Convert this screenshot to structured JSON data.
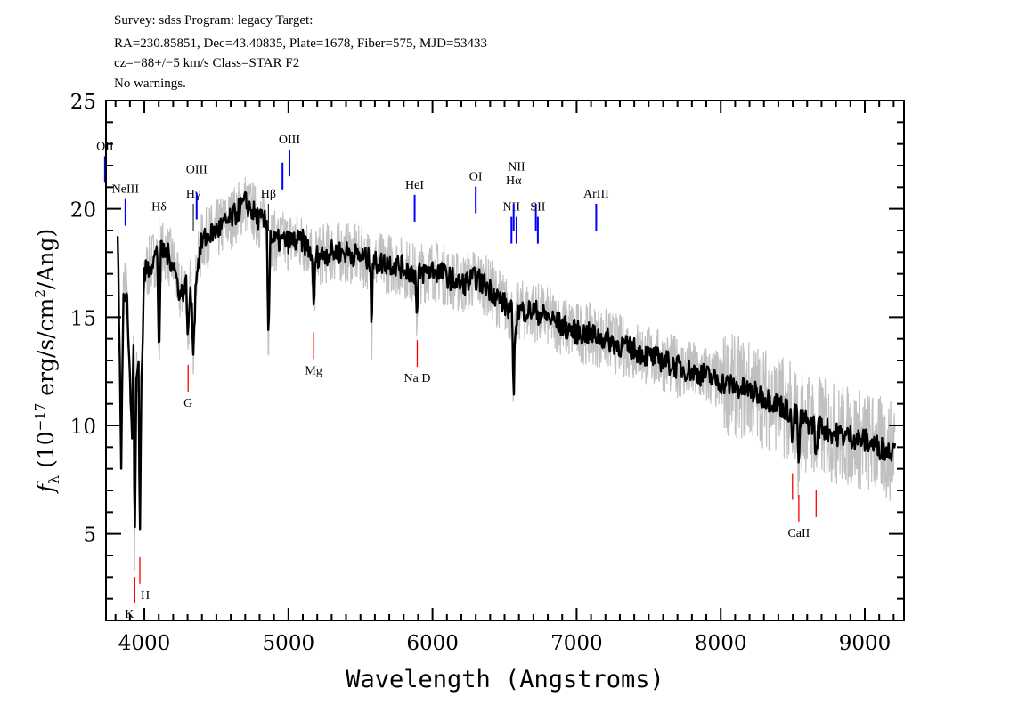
{
  "header": {
    "line1": "Survey: sdss Program: legacy Target:",
    "line2": "RA=230.85851, Dec=43.40835, Plate=1678, Fiber=575, MJD=53433",
    "line3": "cz=−88+/−5 km/s Class=STAR F2",
    "line4": "No warnings."
  },
  "chart_data": {
    "type": "line",
    "xlabel": "Wavelength (Angstroms)",
    "ylabel": "fλ (10^-17 erg/s/cm^2/Ang)",
    "xlim": [
      3734,
      9272
    ],
    "ylim": [
      1,
      25
    ],
    "xticks": [
      4000,
      5000,
      6000,
      7000,
      8000,
      9000
    ],
    "yticks": [
      5,
      10,
      15,
      20,
      25
    ],
    "grid": false,
    "colors": {
      "flux": "#000000",
      "raw": "#c0c0c0",
      "emission": "#0000ff",
      "balmer": "#000000",
      "absorption": "#ff0000"
    },
    "flux": [
      [
        3815,
        18.8
      ],
      [
        3825,
        15
      ],
      [
        3840,
        8.5
      ],
      [
        3855,
        16.5
      ],
      [
        3880,
        16
      ],
      [
        3900,
        12
      ],
      [
        3915,
        9.5
      ],
      [
        3925,
        14
      ],
      [
        3933,
        3.5
      ],
      [
        3945,
        12
      ],
      [
        3960,
        13
      ],
      [
        3968,
        4.5
      ],
      [
        3980,
        12
      ],
      [
        4000,
        17
      ],
      [
        4050,
        17.5
      ],
      [
        4090,
        18
      ],
      [
        4102,
        13
      ],
      [
        4115,
        18
      ],
      [
        4150,
        18
      ],
      [
        4200,
        17.5
      ],
      [
        4250,
        16
      ],
      [
        4290,
        16.5
      ],
      [
        4304,
        14
      ],
      [
        4320,
        16.5
      ],
      [
        4340,
        13.7
      ],
      [
        4360,
        17
      ],
      [
        4400,
        18.5
      ],
      [
        4450,
        18.8
      ],
      [
        4500,
        19
      ],
      [
        4600,
        19.5
      ],
      [
        4700,
        20.3
      ],
      [
        4800,
        19.5
      ],
      [
        4850,
        19.3
      ],
      [
        4861,
        14
      ],
      [
        4875,
        18.8
      ],
      [
        4900,
        18.5
      ],
      [
        5000,
        18.5
      ],
      [
        5100,
        18.5
      ],
      [
        5160,
        18
      ],
      [
        5175,
        15.5
      ],
      [
        5190,
        17.8
      ],
      [
        5300,
        18
      ],
      [
        5400,
        18
      ],
      [
        5500,
        17.8
      ],
      [
        5570,
        17.6
      ],
      [
        5577,
        14
      ],
      [
        5585,
        17.5
      ],
      [
        5700,
        17.5
      ],
      [
        5800,
        17.3
      ],
      [
        5880,
        17
      ],
      [
        5892,
        14.8
      ],
      [
        5905,
        17
      ],
      [
        6000,
        17.2
      ],
      [
        6100,
        16.9
      ],
      [
        6200,
        16.5
      ],
      [
        6300,
        16.8
      ],
      [
        6400,
        16.3
      ],
      [
        6500,
        15.6
      ],
      [
        6550,
        15.2
      ],
      [
        6563,
        11.5
      ],
      [
        6578,
        15
      ],
      [
        6600,
        15.3
      ],
      [
        6700,
        15.3
      ],
      [
        6800,
        15
      ],
      [
        6900,
        14.6
      ],
      [
        7000,
        14.3
      ],
      [
        7100,
        14.2
      ],
      [
        7200,
        14
      ],
      [
        7300,
        13.7
      ],
      [
        7400,
        13.5
      ],
      [
        7500,
        13.2
      ],
      [
        7600,
        13
      ],
      [
        7700,
        12.7
      ],
      [
        7800,
        12.5
      ],
      [
        7900,
        12.3
      ],
      [
        8000,
        12
      ],
      [
        8100,
        11.8
      ],
      [
        8200,
        11.6
      ],
      [
        8300,
        11.3
      ],
      [
        8400,
        11
      ],
      [
        8485,
        10.6
      ],
      [
        8498,
        9
      ],
      [
        8510,
        10.5
      ],
      [
        8530,
        10.4
      ],
      [
        8542,
        8
      ],
      [
        8555,
        10.3
      ],
      [
        8650,
        10
      ],
      [
        8662,
        8.2
      ],
      [
        8675,
        10
      ],
      [
        8800,
        9.6
      ],
      [
        8900,
        9.5
      ],
      [
        9000,
        9.3
      ],
      [
        9100,
        9
      ],
      [
        9180,
        8.8
      ],
      [
        9210,
        9.6
      ]
    ],
    "emission_lines": [
      {
        "label": "OII",
        "wave": 3727,
        "kind": "emission"
      },
      {
        "label": "NeIII",
        "wave": 3869,
        "kind": "emission"
      },
      {
        "label": "Hδ",
        "wave": 4102,
        "kind": "balmer"
      },
      {
        "label": "Hγ",
        "wave": 4340,
        "kind": "balmer"
      },
      {
        "label": "OIII",
        "wave": 4363,
        "kind": "emission"
      },
      {
        "label": "Hβ",
        "wave": 4861,
        "kind": "balmer"
      },
      {
        "label": "OIII",
        "wave": 4959,
        "kind": "emission",
        "nolabel": true
      },
      {
        "label": "OIII",
        "wave": 5007,
        "kind": "emission"
      },
      {
        "label": "HeI",
        "wave": 5876,
        "kind": "emission"
      },
      {
        "label": "OI",
        "wave": 6300,
        "kind": "emission"
      },
      {
        "label": "NII",
        "wave": 6548,
        "kind": "emission"
      },
      {
        "label": "Hα",
        "wave": 6563,
        "kind": "emission"
      },
      {
        "label": "NII",
        "wave": 6583,
        "kind": "emission"
      },
      {
        "label": "SII",
        "wave": 6717,
        "kind": "emission",
        "nolabel": true
      },
      {
        "label": "SII",
        "wave": 6731,
        "kind": "emission"
      },
      {
        "label": "ArIII",
        "wave": 7136,
        "kind": "emission"
      }
    ],
    "absorption_lines": [
      {
        "label": "K",
        "wave": 3934
      },
      {
        "label": "H",
        "wave": 3969
      },
      {
        "label": "G",
        "wave": 4304
      },
      {
        "label": "Mg",
        "wave": 5175
      },
      {
        "label": "Na D",
        "wave": 5894
      },
      {
        "label": "CaII",
        "wave": 8542
      },
      {
        "label": "",
        "wave": 8498
      },
      {
        "label": "",
        "wave": 8662
      }
    ]
  }
}
